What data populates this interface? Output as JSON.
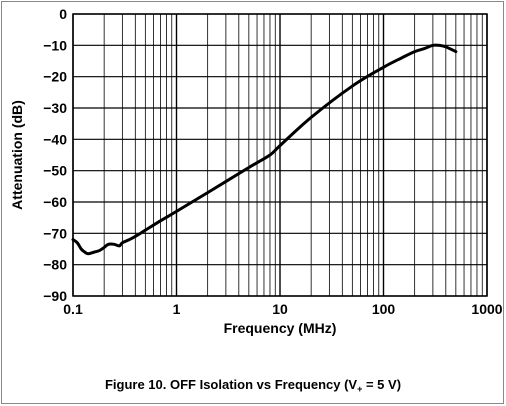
{
  "chart_data": {
    "type": "line",
    "xlabel": "Frequency (MHz)",
    "ylabel": "Attenuation (dB)",
    "x_scale": "log",
    "xlim": [
      0.1,
      1000
    ],
    "ylim": [
      -90,
      0
    ],
    "x_ticks": [
      {
        "value": 0.1,
        "label": "0.1"
      },
      {
        "value": 1,
        "label": "1"
      },
      {
        "value": 10,
        "label": "10"
      },
      {
        "value": 100,
        "label": "100"
      },
      {
        "value": 1000,
        "label": "1000"
      }
    ],
    "y_ticks": [
      {
        "value": 0,
        "label": "0"
      },
      {
        "value": -10,
        "label": "−10"
      },
      {
        "value": -20,
        "label": "−20"
      },
      {
        "value": -30,
        "label": "−30"
      },
      {
        "value": -40,
        "label": "−40"
      },
      {
        "value": -50,
        "label": "−50"
      },
      {
        "value": -60,
        "label": "−60"
      },
      {
        "value": -70,
        "label": "−70"
      },
      {
        "value": -80,
        "label": "−80"
      },
      {
        "value": -90,
        "label": "−90"
      }
    ],
    "grid": true,
    "series": [
      {
        "x": [
          0.1,
          0.11,
          0.12,
          0.13,
          0.14,
          0.16,
          0.18,
          0.2,
          0.22,
          0.25,
          0.28,
          0.3,
          0.35,
          0.4,
          0.5,
          0.7,
          1,
          2,
          5,
          8,
          10,
          20,
          50,
          100,
          150,
          200,
          250,
          300,
          350,
          400,
          500
        ],
        "y": [
          -72,
          -73,
          -75,
          -76,
          -76.5,
          -76,
          -75.5,
          -74.5,
          -73.5,
          -73.5,
          -74,
          -73,
          -72,
          -71,
          -69,
          -66,
          -63,
          -57,
          -49,
          -45,
          -42,
          -33,
          -23,
          -17,
          -14,
          -12,
          -11,
          -10,
          -10,
          -10.5,
          -12
        ]
      }
    ],
    "caption": {
      "prefix": "Figure 10. OFF Isolation vs Frequency (V",
      "subscript": "+",
      "suffix": " = 5 V)"
    }
  }
}
